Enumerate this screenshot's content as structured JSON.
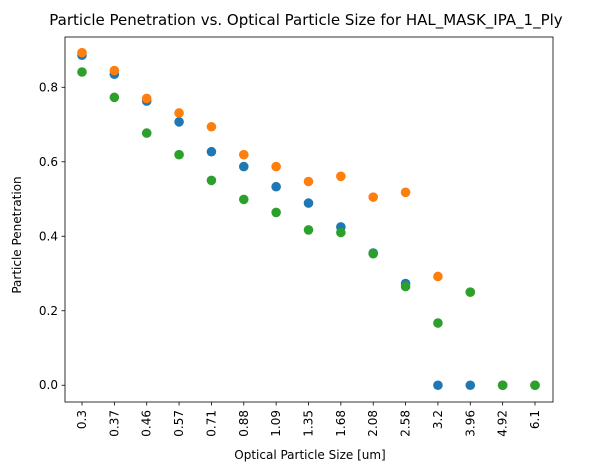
{
  "chart_data": {
    "type": "scatter",
    "title": "Particle Penetration vs. Optical Particle Size for HAL_MASK_IPA_1_Ply",
    "xlabel": "Optical Particle Size [um]",
    "ylabel": "Particle Penetration",
    "categories": [
      "0.3",
      "0.37",
      "0.46",
      "0.57",
      "0.71",
      "0.88",
      "1.09",
      "1.35",
      "1.68",
      "2.08",
      "2.58",
      "3.2",
      "3.96",
      "4.92",
      "6.1"
    ],
    "yticks": [
      "0.0",
      "0.2",
      "0.4",
      "0.6",
      "0.8"
    ],
    "ylim": [
      -0.045,
      0.935
    ],
    "grid": false,
    "series": [
      {
        "color": "#1f77b4",
        "values": [
          0.886,
          0.835,
          0.763,
          0.707,
          0.627,
          0.587,
          0.533,
          0.489,
          0.425,
          0.355,
          0.273,
          0.0,
          0.0,
          0.0,
          0.0
        ]
      },
      {
        "color": "#ff7f0e",
        "values": [
          0.893,
          0.845,
          0.77,
          0.731,
          0.694,
          0.619,
          0.587,
          0.547,
          0.561,
          0.505,
          0.518,
          0.292,
          0.25,
          0.0,
          0.0
        ]
      },
      {
        "color": "#2ca02c",
        "values": [
          0.841,
          0.773,
          0.677,
          0.619,
          0.55,
          0.499,
          0.464,
          0.417,
          0.41,
          0.353,
          0.265,
          0.167,
          0.25,
          0.0,
          0.0
        ]
      }
    ]
  }
}
